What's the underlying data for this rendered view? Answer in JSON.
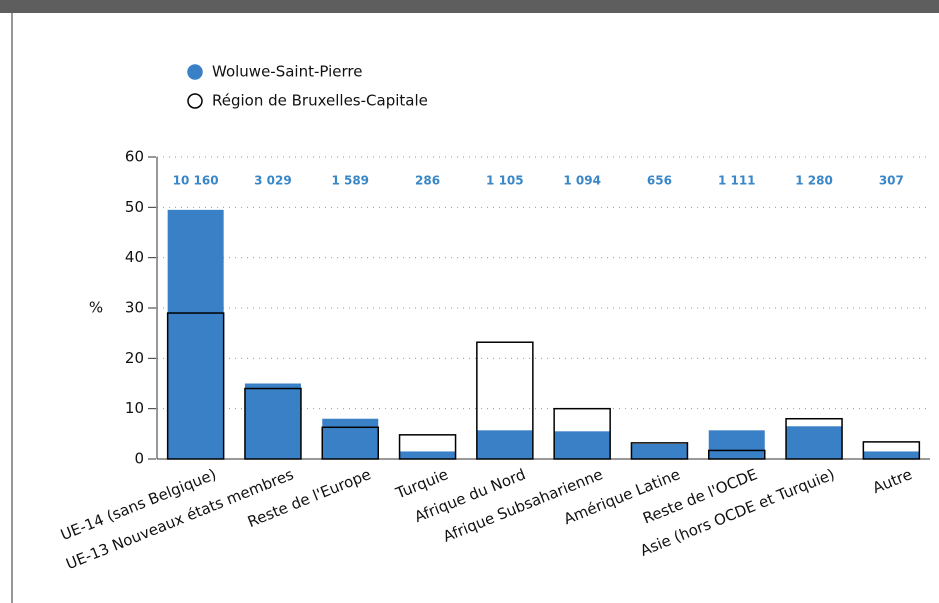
{
  "chart_data": {
    "type": "bar",
    "y_label": "%",
    "categories": [
      "UE-14 (sans Belgique)",
      "UE-13 Nouveaux états membres",
      "Reste de l'Europe",
      "Turquie",
      "Afrique du Nord",
      "Afrique Subsaharienne",
      "Amérique Latine",
      "Reste de l'OCDE",
      "Asie (hors OCDE et Turquie)",
      "Autre"
    ],
    "count_labels": [
      "10 160",
      "3 029",
      "1 589",
      "286",
      "1 105",
      "1 094",
      "656",
      "1 111",
      "1 280",
      "307"
    ],
    "series": [
      {
        "name": "Woluwe-Saint-Pierre",
        "color": "#3a80c6",
        "values": [
          49.5,
          15,
          8,
          1.5,
          5.7,
          5.5,
          3,
          5.7,
          6.5,
          1.5
        ]
      },
      {
        "name": "Région de Bruxelles-Capitale",
        "color": "#000000",
        "values": [
          29,
          14,
          6.3,
          4.8,
          23.2,
          10,
          3.2,
          1.7,
          8,
          3.4
        ]
      }
    ],
    "ylim": [
      0,
      60
    ],
    "yticks": [
      0,
      10,
      20,
      30,
      40,
      50,
      60
    ],
    "grid": true
  }
}
